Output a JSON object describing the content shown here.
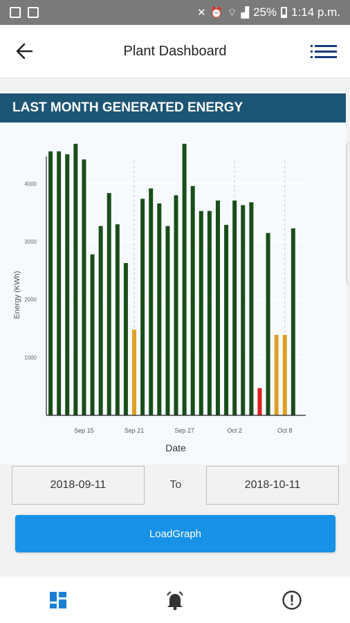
{
  "status_bar": {
    "battery": "25%",
    "time": "1:14 p.m.",
    "icons": [
      "image-icon",
      "gallery-icon",
      "mute-icon",
      "alarm-icon",
      "wifi-icon",
      "signal-icon",
      "battery-icon"
    ]
  },
  "app_bar": {
    "title": "Plant Dashboard",
    "back_icon": "arrow-left-icon",
    "menu_icon": "list-menu-icon"
  },
  "section": {
    "title": "LAST MONTH GENERATED ENERGY"
  },
  "chart_data": {
    "type": "bar",
    "xlabel": "Date",
    "ylabel": "Energy (KWh)",
    "ylim": [
      0,
      4400
    ],
    "y_ticks": [
      1000,
      2000,
      3000,
      4000
    ],
    "y_tick_labels": [
      "1000",
      "2000",
      "3000",
      "4000"
    ],
    "x_ticks": [
      "Sep 15",
      "Sep 21",
      "Sep 27",
      "Oct 2",
      "Oct 8"
    ],
    "x_tick_positions": [
      4.5,
      10.5,
      16.5,
      22.5,
      28.5
    ],
    "categories": [
      "2018-09-11",
      "2018-09-12",
      "2018-09-13",
      "2018-09-14",
      "2018-09-15",
      "2018-09-16",
      "2018-09-17",
      "2018-09-18",
      "2018-09-19",
      "2018-09-20",
      "2018-09-21",
      "2018-09-22",
      "2018-09-23",
      "2018-09-24",
      "2018-09-25",
      "2018-09-26",
      "2018-09-27",
      "2018-09-28",
      "2018-09-29",
      "2018-09-30",
      "2018-10-01",
      "2018-10-02",
      "2018-10-03",
      "2018-10-04",
      "2018-10-05",
      "2018-10-06",
      "2018-10-07",
      "2018-10-08",
      "2018-10-09",
      "2018-10-10",
      "2018-10-11"
    ],
    "values": [
      4560,
      4560,
      4510,
      4690,
      4420,
      2780,
      3270,
      3840,
      3300,
      2630,
      1480,
      3740,
      3920,
      3660,
      3270,
      3800,
      4690,
      3960,
      3530,
      3530,
      3710,
      3290,
      3710,
      3630,
      3680,
      470,
      3150,
      1390,
      1390,
      3230,
      0
    ],
    "bar_colors": [
      "#1a4d1a",
      "#1a4d1a",
      "#1a4d1a",
      "#1a4d1a",
      "#1a4d1a",
      "#1a4d1a",
      "#1a4d1a",
      "#1a4d1a",
      "#1a4d1a",
      "#1a4d1a",
      "#e0a028",
      "#1a4d1a",
      "#1a4d1a",
      "#1a4d1a",
      "#1a4d1a",
      "#1a4d1a",
      "#1a4d1a",
      "#1a4d1a",
      "#1a4d1a",
      "#1a4d1a",
      "#1a4d1a",
      "#1a4d1a",
      "#1a4d1a",
      "#1a4d1a",
      "#1a4d1a",
      "#e02020",
      "#1a4d1a",
      "#e0a028",
      "#e0a028",
      "#1a4d1a",
      "#1a4d1a"
    ],
    "grid": true
  },
  "date_range": {
    "from": "2018-09-11",
    "to_label": "To",
    "to": "2018-10-11"
  },
  "load_button": {
    "label": "LoadGraph",
    "color": "#1792e6"
  },
  "bottom_nav": {
    "items": [
      "dashboard-icon",
      "alarm-bell-icon",
      "alert-circle-icon"
    ],
    "active_color": "#1a7ed6"
  }
}
